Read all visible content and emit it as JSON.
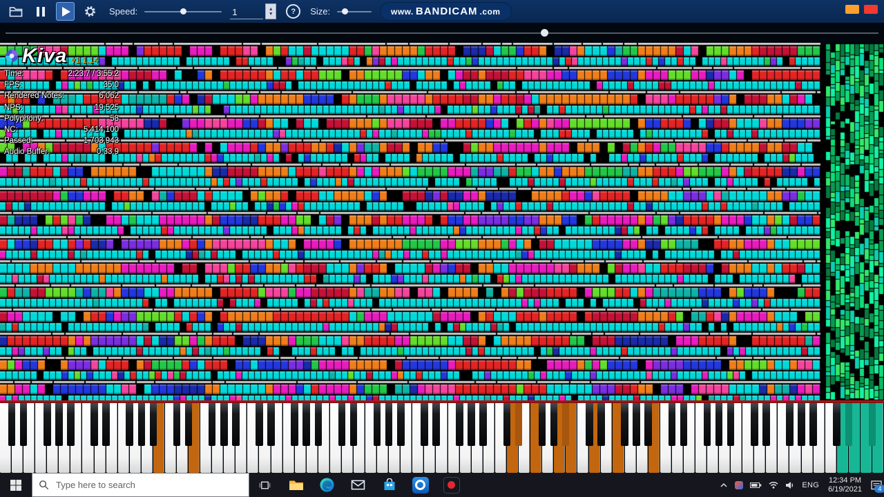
{
  "toolbar": {
    "speed_label": "Speed:",
    "speed_value": "1",
    "speed_slider_percent": 50,
    "size_label": "Size:",
    "size_slider_percent": 22,
    "help_label": "?",
    "watermark_www": "www.",
    "watermark_name": "BANDICAM",
    "watermark_com": ".com"
  },
  "seek": {
    "progress_percent": 61.7
  },
  "overlay": {
    "app_name": "Kiva",
    "version": "v1.1.14",
    "stats": [
      {
        "label": "Time:",
        "value": "2:23.7 / 3:55.2"
      },
      {
        "label": "FPS:",
        "value": "35.0"
      },
      {
        "label": "Rendered Notes:",
        "value": "6,062"
      },
      {
        "label": "NPS:",
        "value": "19,525"
      },
      {
        "label": "Polyphony:",
        "value": "58"
      },
      {
        "label": "NC:",
        "value": "5,414,100"
      },
      {
        "label": "Passed:",
        "value": "1,703,943"
      },
      {
        "label": "Audio Buffer:",
        "value": "0:33.9"
      }
    ]
  },
  "visualization": {
    "seed": 20210619,
    "main_width": 1190,
    "green_start": 1196,
    "cyan": "#00d9d9",
    "orange": "#ef7d1a",
    "gray_bar": "#c9c9c9",
    "palette": [
      "#00d9d9",
      "#00d9d9",
      "#00d9d9",
      "#e32424",
      "#e32424",
      "#e32424",
      "#c31236",
      "#c31236",
      "#e81bbe",
      "#e81bbe",
      "#e81bbe",
      "#f4449c",
      "#2337dd",
      "#2337dd",
      "#1a2aa8",
      "#22c748",
      "#63dd2a",
      "#ef7d1a",
      "#7a2ee0",
      "#0fb2a6"
    ],
    "green_palette": [
      "#0ddc7a",
      "#09b863",
      "#12f2a2",
      "#0a9a52",
      "#32e86a",
      "#0bd0b0",
      "#067a40"
    ],
    "orange_columns": [
      299,
      390,
      508,
      556,
      698,
      789,
      841,
      929,
      1058,
      1121
    ]
  },
  "piano": {
    "white_key_count": 75,
    "pressed_white_orange": [
      13,
      16,
      43,
      45,
      47,
      48,
      50,
      52,
      55
    ],
    "pressed_black_orange": [
      43,
      47
    ],
    "teal_from_white_index": 71,
    "orange_key_color": "#c2660f",
    "orange_black_color": "#a8560d",
    "teal_key_color": "#17b795",
    "teal_black_color": "#0d8f72"
  },
  "taskbar": {
    "search_placeholder": "Type here to search",
    "tray_language": "ENG",
    "tray_time": "12:34 PM",
    "tray_date": "6/19/2021",
    "notification_badge": "4"
  }
}
